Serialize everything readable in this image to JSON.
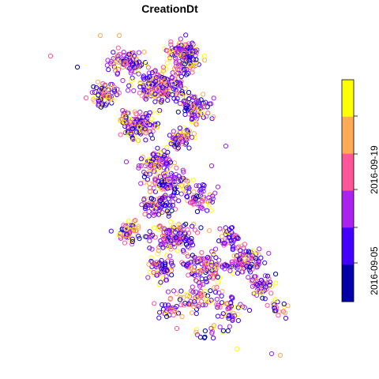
{
  "chart_data": {
    "type": "scatter",
    "title": "CreationDt",
    "legend": {
      "placement": "right",
      "kind": "color-key",
      "colors": [
        "#0000AA",
        "#4400FF",
        "#AA22EE",
        "#FF5599",
        "#FFAA55",
        "#FFFF00"
      ],
      "tick_labels": [
        "2016-09-05",
        "2016-09-19"
      ]
    },
    "marker": "open-circle",
    "grid": false,
    "axes_visible": false
  }
}
